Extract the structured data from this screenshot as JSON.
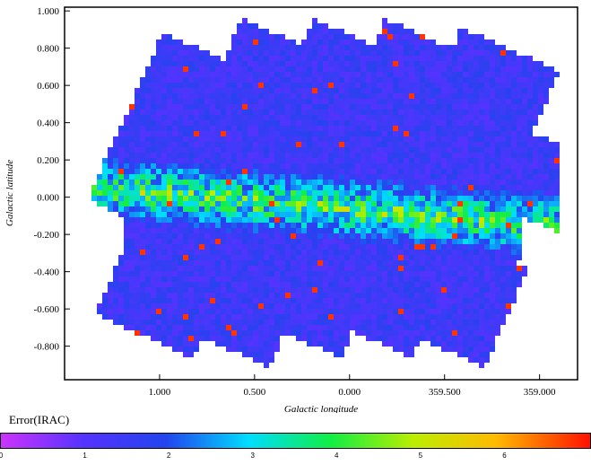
{
  "chart_data": {
    "type": "heatmap",
    "xlabel": "Galactic longitude",
    "ylabel": "Galactic latitude",
    "x_range": [
      1.5,
      -1.2
    ],
    "y_range": [
      -0.98,
      1.02
    ],
    "x_ticks": [
      "1.000",
      "0.500",
      "0.000",
      "359.500",
      "359.000"
    ],
    "x_tick_values": [
      1.0,
      0.5,
      0.0,
      -0.5,
      -1.0
    ],
    "y_ticks": [
      "1.000",
      "0.800",
      "0.600",
      "0.400",
      "0.200",
      "0.000",
      "-0.200",
      "-0.400",
      "-0.600",
      "-0.800"
    ],
    "y_tick_values": [
      1.0,
      0.8,
      0.6,
      0.4,
      0.2,
      0.0,
      -0.2,
      -0.4,
      -0.6,
      -0.8
    ],
    "colorbar": {
      "label": "Error(IRAC)",
      "ticks": [
        "0",
        "1",
        "2",
        "3",
        "4",
        "5",
        "6"
      ],
      "range": [
        0,
        7
      ],
      "colors": [
        "#cc33ff",
        "#5533ff",
        "#2244ee",
        "#00ddff",
        "#11ee44",
        "#bbee00",
        "#ffbb00",
        "#ff1100"
      ]
    },
    "typical_error_range": [
      0.5,
      6.8
    ]
  }
}
